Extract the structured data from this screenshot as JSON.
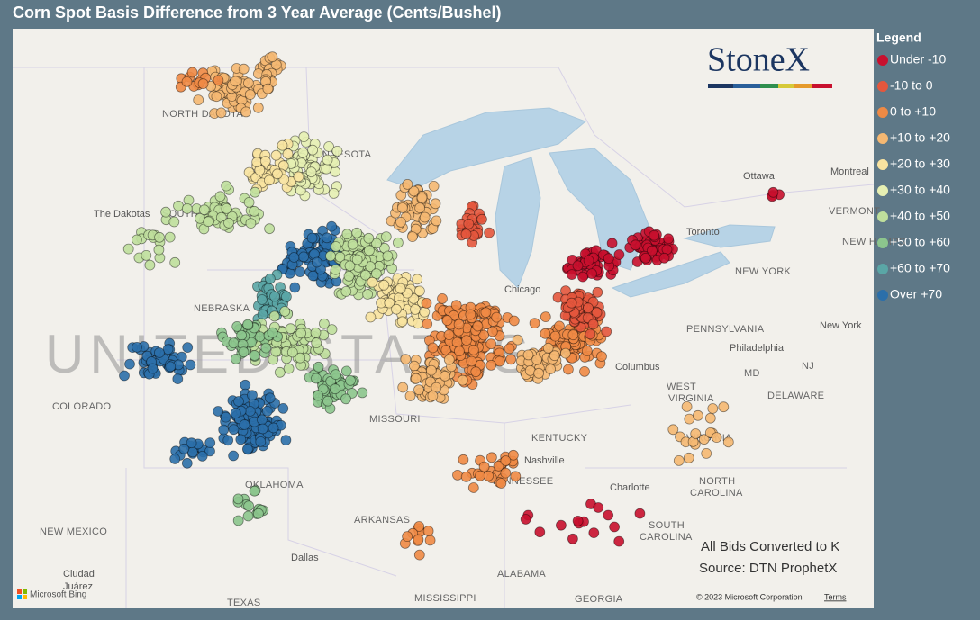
{
  "title": "Corn Spot Basis Difference from 3 Year Average (Cents/Bushel)",
  "logo": "StoneX",
  "legend": {
    "title": "Legend",
    "items": [
      {
        "label": "Under -10",
        "color": "#c8102e"
      },
      {
        "label": "-10 to 0",
        "color": "#e4573d"
      },
      {
        "label": "0 to +10",
        "color": "#ef8a45"
      },
      {
        "label": "+10 to +20",
        "color": "#f5b872"
      },
      {
        "label": "+20 to +30",
        "color": "#f8e3a0"
      },
      {
        "label": "+30 to +40",
        "color": "#e6efb2"
      },
      {
        "label": "+40 to +50",
        "color": "#bfdf9c"
      },
      {
        "label": "+50 to +60",
        "color": "#8cc58d"
      },
      {
        "label": "+60 to +70",
        "color": "#5aa6a6"
      },
      {
        "label": "Over +70",
        "color": "#2b6faa"
      }
    ]
  },
  "map": {
    "country": "UNITED STATES",
    "labels": [
      "NORTH DAKOTA",
      "MINNESOTA",
      "The Dakotas",
      "SOUTH",
      "NEBRASKA",
      "COLORADO",
      "MISSOURI",
      "KENTUCKY",
      "TENNESSEE",
      "OKLAHOMA",
      "ARKANSAS",
      "NEW MEXICO",
      "ALABAMA",
      "MISSISSIPPI",
      "GEORGIA",
      "TEXAS",
      "Dallas",
      "Ciudad",
      "Juárez",
      "Nashville",
      "Columbus",
      "WEST",
      "VIRGINIA",
      "VIRGINIA",
      "NORTH",
      "CAROLINA",
      "SOUTH",
      "CAROLINA",
      "Charlotte",
      "Philadelphia",
      "New York",
      "NEW YORK",
      "PENNSYLVANIA",
      "MD",
      "DELAWARE",
      "NJ",
      "Chicago",
      "Ottawa",
      "Montreal",
      "VERMONT",
      "NEW HAMPS",
      "Toronto"
    ]
  },
  "annotation": [
    "All Bids Converted to K",
    "Source: DTN ProphetX"
  ],
  "attribution": {
    "provider": "Microsoft Bing",
    "copyright": "© 2023 Microsoft Corporation",
    "terms": "Terms"
  }
}
